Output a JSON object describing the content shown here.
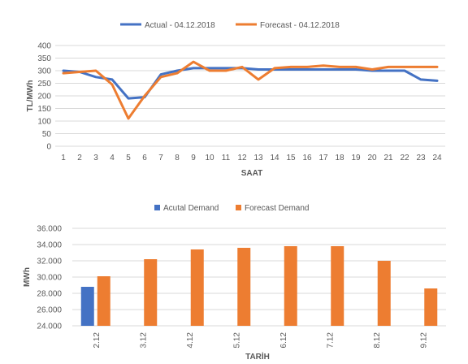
{
  "chart_data": [
    {
      "type": "line",
      "xlabel": "SAAT",
      "ylabel": "TL/MWh",
      "ylim": [
        0,
        400
      ],
      "yticks": [
        0,
        50,
        100,
        150,
        200,
        250,
        300,
        350,
        400
      ],
      "x": [
        1,
        2,
        3,
        4,
        5,
        6,
        7,
        8,
        9,
        10,
        11,
        12,
        13,
        14,
        15,
        16,
        17,
        18,
        19,
        20,
        21,
        22,
        23,
        24
      ],
      "x_labels": [
        "1",
        "2",
        "3",
        "4",
        "5",
        "6",
        "7",
        "8",
        "9",
        "10",
        "11",
        "12",
        "13",
        "14",
        "15",
        "16",
        "17",
        "18",
        "19",
        "20",
        "21",
        "22",
        "23",
        "24"
      ],
      "grid": true,
      "legend": "top",
      "series": [
        {
          "name": "Actual - 04.12.2018",
          "color": "#4472c4",
          "values": [
            300,
            295,
            275,
            265,
            190,
            195,
            285,
            300,
            310,
            310,
            310,
            310,
            305,
            305,
            305,
            305,
            305,
            305,
            305,
            300,
            300,
            300,
            265,
            260
          ]
        },
        {
          "name": "Forecast - 04.12.2018",
          "color": "#ed7d31",
          "values": [
            290,
            295,
            300,
            245,
            110,
            200,
            275,
            290,
            335,
            300,
            300,
            315,
            265,
            310,
            315,
            315,
            320,
            315,
            315,
            305,
            315,
            315,
            315,
            315
          ]
        }
      ]
    },
    {
      "type": "bar",
      "xlabel": "TARİH",
      "ylabel": "MWh",
      "ylim": [
        24000,
        36000
      ],
      "yticks": [
        24000,
        26000,
        28000,
        30000,
        32000,
        34000,
        36000
      ],
      "ytick_labels": [
        "24.000",
        "26.000",
        "28.000",
        "30.000",
        "32.000",
        "34.000",
        "36.000"
      ],
      "categories": [
        "2.12",
        "3.12",
        "4.12",
        "5.12",
        "6.12",
        "7.12",
        "8.12",
        "9.12"
      ],
      "grid": true,
      "legend": "top",
      "series": [
        {
          "name": "Acutal Demand",
          "color": "#4472c4",
          "values": [
            28800,
            null,
            null,
            null,
            null,
            null,
            null,
            null
          ]
        },
        {
          "name": "Forecast Demand",
          "color": "#ed7d31",
          "values": [
            30100,
            32200,
            33400,
            33600,
            33800,
            33800,
            32000,
            28600
          ]
        }
      ]
    }
  ]
}
